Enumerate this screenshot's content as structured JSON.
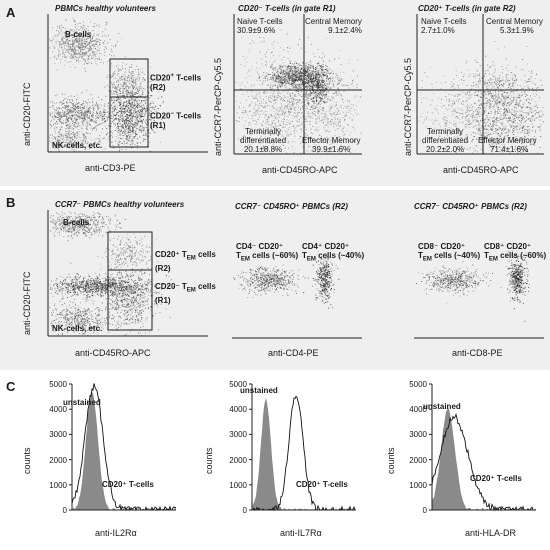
{
  "sections": [
    {
      "letter": "A"
    },
    {
      "letter": "B"
    },
    {
      "letter": "C"
    }
  ],
  "panel_a": {
    "p1": {
      "title": "PBMCs healthy volunteers",
      "y_axis": "anti-CD20-FITC",
      "x_axis": "anti-CD3-PE",
      "labels": {
        "bcells": "B-cells",
        "cd20p_1": "CD20",
        "cd20p_2": "T-cells",
        "cd20p_3": "(R2)",
        "cd20n_1": "CD20",
        "cd20n_2": "T-cells",
        "cd20n_3": "(R1)",
        "nk": "NK-cells, etc.",
        "sup_plus": "+",
        "sup_minus": "−"
      }
    },
    "p2": {
      "title": "CD20⁻ T-cells (in gate R1)",
      "y_axis": "anti-CCR7-PerCP-Cy5.5",
      "x_axis": "anti-CD45RO-APC",
      "naive": "Naive T-cells",
      "naive_val": "30.9±9.6%",
      "cm": "Central Memory",
      "cm_val": "9.1±2.4%",
      "td1": "Terminally",
      "td2": "differentiated",
      "td_val": "20.1±8.8%",
      "em": "Effector Memory",
      "em_val": "39.9±1.6%"
    },
    "p3": {
      "title": "CD20⁺ T-cells (in gate R2)",
      "y_axis": "anti-CCR7-PerCP-Cy5.5",
      "x_axis": "anti-CD45RO-APC",
      "naive": "Naive T-cells",
      "naive_val": "2.7±1.0%",
      "cm": "Central Memory",
      "cm_val": "5.3±1.9%",
      "td1": "Terminally",
      "td2": "differentiated",
      "td_val": "20.2±2.0%",
      "em": "Effector Memory",
      "em_val": "71.4±1.6%"
    }
  },
  "panel_b": {
    "p1": {
      "title": "CCR7⁻ PBMCs healthy volunteers",
      "y_axis": "anti-CD20-FITC",
      "x_axis": "anti-CD45RO-APC",
      "bcells": "B-cells",
      "nk": "NK-cells, etc.",
      "r2_1": "CD20⁺ T",
      "r2_sub": "EM",
      "r2_2": " cells",
      "r2_3": "(R2)",
      "r1_1": "CD20⁻ T",
      "r1_sub": "EM",
      "r1_2": " cells",
      "r1_3": "(R1)"
    },
    "p2": {
      "title": "CCR7⁻ CD45RO⁺ PBMCs (R2)",
      "x_axis": "anti-CD4-PE",
      "left1": "CD4⁻ CD20⁺",
      "left2": "T",
      "left2_sub": "EM",
      "left3": " cells (~60%)",
      "right1": "CD4⁺ CD20⁺",
      "right2": "T",
      "right2_sub": "EM",
      "right3": " cells (~40%)"
    },
    "p3": {
      "title": "CCR7⁻ CD45RO⁺ PBMCs (R2)",
      "x_axis": "anti-CD8-PE",
      "left1": "CD8⁻ CD20⁺",
      "left2": "T",
      "left2_sub": "EM",
      "left3": " cells (~40%)",
      "right1": "CD8⁺ CD20⁺",
      "right2": "T",
      "right2_sub": "EM",
      "right3": " cells (~60%)"
    }
  },
  "panel_c": {
    "y_axis": "counts",
    "ticks": [
      "5000",
      "4000",
      "3000",
      "2000",
      "1000",
      "0"
    ],
    "unstained": "unstained",
    "series": "CD20⁺ T-cells",
    "x1": "anti-IL2Rα",
    "x2": "anti-IL7Rα",
    "x3": "anti-HLA-DR"
  },
  "chart_data": [
    {
      "type": "heatmap",
      "title": "PBMCs healthy volunteers",
      "xlabel": "anti-CD3-PE",
      "ylabel": "anti-CD20-FITC",
      "populations": [
        "B-cells",
        "CD20+ T-cells (R2)",
        "CD20- T-cells (R1)",
        "NK-cells, etc."
      ]
    },
    {
      "type": "scatter",
      "title": "CD20- T-cells (in gate R1)",
      "xlabel": "anti-CD45RO-APC",
      "ylabel": "anti-CCR7-PerCP-Cy5.5",
      "quadrants": [
        {
          "name": "Naive T-cells",
          "value": "30.9±9.6%"
        },
        {
          "name": "Central Memory",
          "value": "9.1±2.4%"
        },
        {
          "name": "Terminally differentiated",
          "value": "20.1±8.8%"
        },
        {
          "name": "Effector Memory",
          "value": "39.9±1.6%"
        }
      ]
    },
    {
      "type": "scatter",
      "title": "CD20+ T-cells (in gate R2)",
      "xlabel": "anti-CD45RO-APC",
      "ylabel": "anti-CCR7-PerCP-Cy5.5",
      "quadrants": [
        {
          "name": "Naive T-cells",
          "value": "2.7±1.0%"
        },
        {
          "name": "Central Memory",
          "value": "5.3±1.9%"
        },
        {
          "name": "Terminally differentiated",
          "value": "20.2±2.0%"
        },
        {
          "name": "Effector Memory",
          "value": "71.4±1.6%"
        }
      ]
    },
    {
      "type": "area",
      "xlabel": "anti-IL2Rα",
      "ylabel": "counts",
      "ylim": [
        0,
        5000
      ],
      "series": [
        {
          "name": "unstained",
          "peak": 4700
        },
        {
          "name": "CD20+ T-cells",
          "peak": 4900
        }
      ]
    },
    {
      "type": "area",
      "xlabel": "anti-IL7Rα",
      "ylabel": "counts",
      "ylim": [
        0,
        5000
      ],
      "series": [
        {
          "name": "unstained",
          "peak": 4400
        },
        {
          "name": "CD20+ T-cells",
          "peak": 4600
        }
      ]
    },
    {
      "type": "area",
      "xlabel": "anti-HLA-DR",
      "ylabel": "counts",
      "ylim": [
        0,
        5000
      ],
      "series": [
        {
          "name": "unstained",
          "peak": 4000
        },
        {
          "name": "CD20+ T-cells",
          "peak": 3700
        }
      ]
    }
  ]
}
